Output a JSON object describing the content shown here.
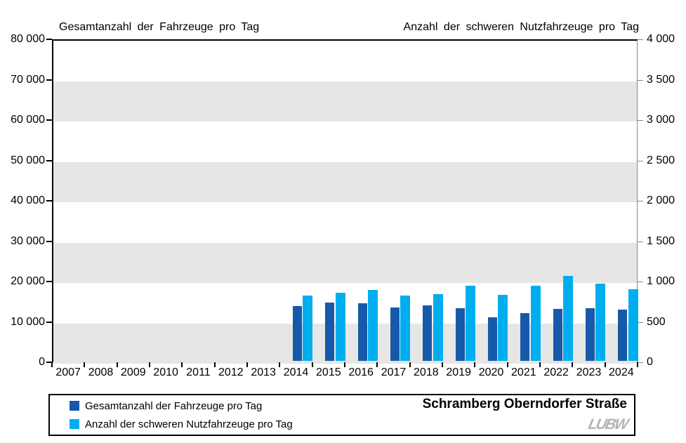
{
  "chart": {
    "left_axis_title": "Gesamtanzahl der Fahrzeuge pro Tag",
    "right_axis_title": "Anzahl der schweren Nutzfahrzeuge pro Tag"
  },
  "chart_data": {
    "type": "bar",
    "categories": [
      "2007",
      "2008",
      "2009",
      "2010",
      "2011",
      "2012",
      "2013",
      "2014",
      "2015",
      "2016",
      "2017",
      "2018",
      "2019",
      "2020",
      "2021",
      "2022",
      "2023",
      "2024"
    ],
    "series": [
      {
        "name": "Gesamtanzahl der Fahrzeuge pro Tag",
        "axis": "left",
        "color": "#1759a9",
        "values": [
          null,
          null,
          null,
          null,
          null,
          null,
          null,
          13500,
          14500,
          14300,
          13300,
          13800,
          13000,
          10800,
          11900,
          12900,
          13000,
          12700
        ]
      },
      {
        "name": "Anzahl der schweren Nutzfahrzeuge pro Tag",
        "axis": "right",
        "color": "#00aeef",
        "values": [
          null,
          null,
          null,
          null,
          null,
          null,
          null,
          810,
          845,
          880,
          805,
          825,
          930,
          820,
          930,
          1055,
          960,
          890
        ]
      }
    ],
    "left_axis": {
      "min": 0,
      "max": 80000,
      "step": 10000,
      "ticks": [
        "0",
        "10 000",
        "20 000",
        "30 000",
        "40 000",
        "50 000",
        "60 000",
        "70 000",
        "80 000"
      ]
    },
    "right_axis": {
      "min": 0,
      "max": 4000,
      "step": 500,
      "ticks": [
        "0",
        "500",
        "1 000",
        "1 500",
        "2 000",
        "2 500",
        "3 000",
        "3 500",
        "4 000"
      ]
    },
    "band_color": "#e6e6e6",
    "grid": "banded",
    "legend_position": "bottom-left"
  },
  "footer": {
    "title": "Schramberg Oberndorfer Straße",
    "logo_text": "LUBW",
    "legend": [
      {
        "label": "Gesamtanzahl der Fahrzeuge pro Tag",
        "color": "#1759a9"
      },
      {
        "label": "Anzahl der schweren Nutzfahrzeuge pro Tag",
        "color": "#00aeef"
      }
    ]
  }
}
